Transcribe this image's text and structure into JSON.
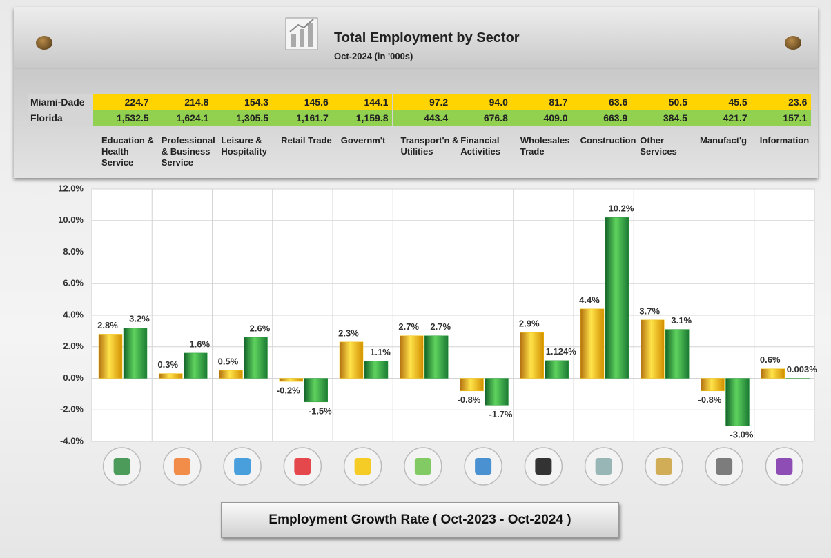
{
  "header": {
    "title": "Total Employment by Sector",
    "subtitle": "Oct-2024 (in '000s)"
  },
  "table": {
    "row_labels": [
      "Miami-Dade",
      "Florida"
    ],
    "rows": [
      [
        "224.7",
        "214.8",
        "154.3",
        "145.6",
        "144.1",
        "97.2",
        "94.0",
        "81.7",
        "63.6",
        "50.5",
        "45.5",
        "23.6"
      ],
      [
        "1,532.5",
        "1,624.1",
        "1,305.5",
        "1,161.7",
        "1,159.8",
        "443.4",
        "676.8",
        "409.0",
        "663.9",
        "384.5",
        "421.7",
        "157.1"
      ]
    ]
  },
  "chart_data": {
    "type": "bar",
    "categories": [
      "Education & Health Service",
      "Professional & Business Service",
      "Leisure & Hospitality",
      "Retail Trade",
      "Governm't",
      "Transport'n & Utilities",
      "Financial Activities",
      "Wholesales Trade",
      "Construction",
      "Other Services",
      "Manufact'g",
      "Information"
    ],
    "series": [
      {
        "name": "Miami-Dade",
        "color": "#f2c200",
        "values": [
          2.8,
          0.3,
          0.5,
          -0.2,
          2.3,
          2.7,
          -0.8,
          2.9,
          4.4,
          3.7,
          -0.8,
          0.6
        ],
        "value_labels": [
          "2.8%",
          "0.3%",
          "0.5%",
          "-0.2%",
          "2.3%",
          "2.7%",
          "-0.8%",
          "2.9%",
          "4.4%",
          "3.7%",
          "-0.8%",
          "0.6%"
        ]
      },
      {
        "name": "Florida",
        "color": "#2f9e3f",
        "values": [
          3.2,
          1.6,
          2.6,
          -1.5,
          1.1,
          2.7,
          -1.7,
          1.124,
          10.2,
          3.1,
          -3.0,
          0.003
        ],
        "value_labels": [
          "3.2%",
          "1.6%",
          "2.6%",
          "-1.5%",
          "1.1%",
          "2.7%",
          "-1.7%",
          "1.124%",
          "10.2%",
          "3.1%",
          "-3.0%",
          "0.003%"
        ]
      }
    ],
    "ylim": [
      -4,
      12
    ],
    "yticks": [
      {
        "value": -4,
        "label": "-4.0%"
      },
      {
        "value": -2,
        "label": "-2.0%"
      },
      {
        "value": 0,
        "label": "0.0%"
      },
      {
        "value": 2,
        "label": "2.0%"
      },
      {
        "value": 4,
        "label": "4.0%"
      },
      {
        "value": 6,
        "label": "6.0%"
      },
      {
        "value": 8,
        "label": "8.0%"
      },
      {
        "value": 10,
        "label": "10.0%"
      },
      {
        "value": 12,
        "label": "12.0%"
      }
    ],
    "grid": true,
    "button": "Employment Growth Rate ( Oct-2023  - Oct-2024 )"
  }
}
